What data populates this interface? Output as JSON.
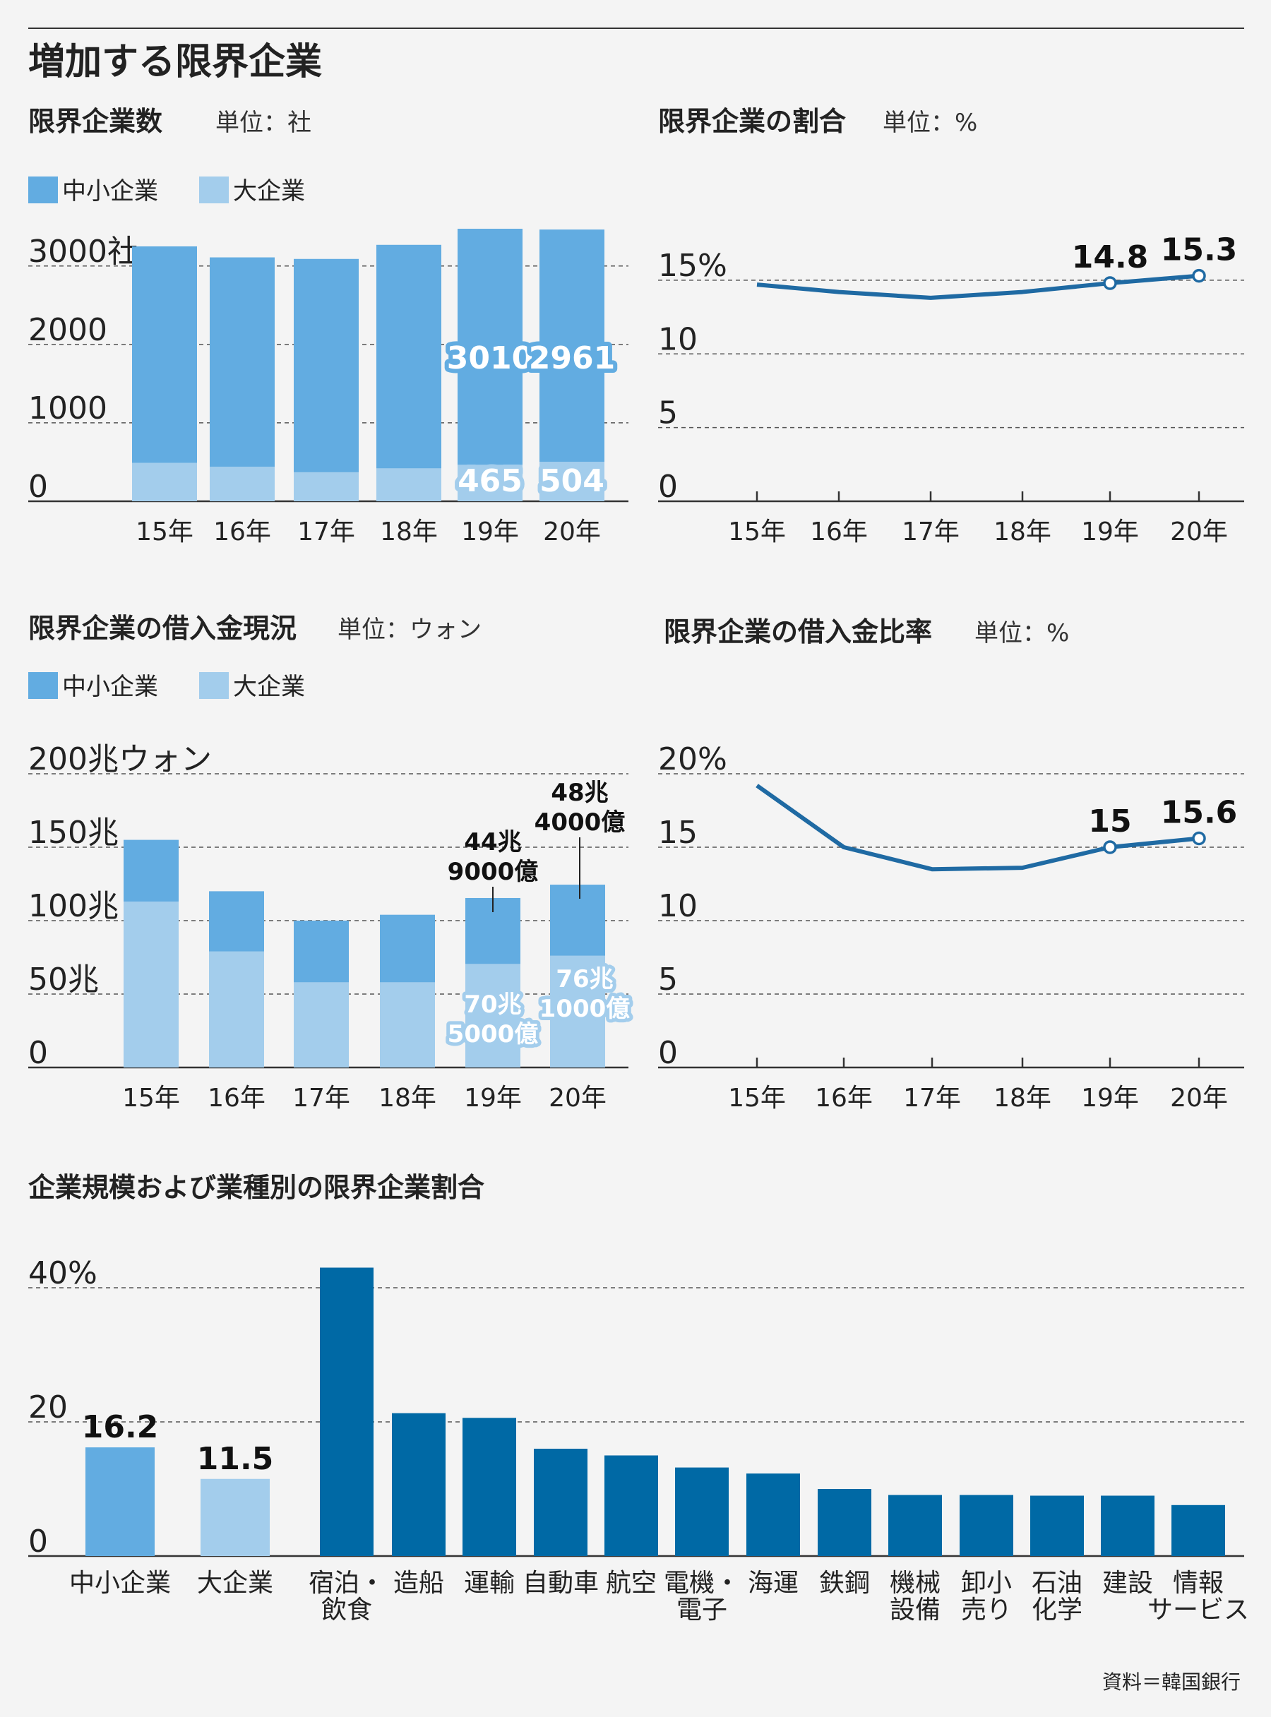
{
  "page": {
    "title": "増加する限界企業",
    "source": "資料＝韓国銀行"
  },
  "colors": {
    "sme": "#62ace1",
    "large": "#a3cdec",
    "dark": "#0069a5",
    "line": "#1f6aa3",
    "background": "#f4f4f4"
  },
  "chart_data": [
    {
      "id": "count",
      "type": "bar",
      "stacked": true,
      "title": "限界企業数",
      "unit": "単位：社",
      "categories": [
        "15年",
        "16年",
        "17年",
        "18年",
        "19年",
        "20年"
      ],
      "series": [
        {
          "name": "大企業",
          "values": [
            490,
            440,
            370,
            420,
            465,
            504
          ]
        },
        {
          "name": "中小企業",
          "values": [
            2760,
            2670,
            2720,
            2850,
            3010,
            2961
          ]
        }
      ],
      "yticks": [
        0,
        1000,
        2000,
        3000
      ],
      "ytick_labels": [
        "0",
        "1000",
        "2000",
        "3000社"
      ],
      "ylim": [
        0,
        3250
      ],
      "labels": {
        "sme_19": "3010",
        "sme_20": "2961",
        "large_19": "465",
        "large_20": "504"
      }
    },
    {
      "id": "ratio",
      "type": "line",
      "title": "限界企業の割合",
      "unit": "単位：%",
      "categories": [
        "15年",
        "16年",
        "17年",
        "18年",
        "19年",
        "20年"
      ],
      "values": [
        14.7,
        14.2,
        13.8,
        14.2,
        14.8,
        15.3
      ],
      "yticks": [
        0,
        5,
        10,
        15
      ],
      "ytick_labels": [
        "0",
        "5",
        "10",
        "15%"
      ],
      "ylim": [
        0,
        16
      ],
      "point_labels": {
        "4": "14.8",
        "5": "15.3"
      }
    },
    {
      "id": "debt",
      "type": "bar",
      "stacked": true,
      "title": "限界企業の借入金現況",
      "unit": "単位：ウォン",
      "categories": [
        "15年",
        "16年",
        "17年",
        "18年",
        "19年",
        "20年"
      ],
      "series": [
        {
          "name": "大企業",
          "values": [
            113,
            79,
            58,
            58,
            70.5,
            76.1
          ]
        },
        {
          "name": "中小企業",
          "values": [
            42,
            41,
            42,
            46,
            44.9,
            48.4
          ]
        }
      ],
      "yticks": [
        0,
        50,
        100,
        150,
        200
      ],
      "ytick_labels": [
        "0",
        "50兆",
        "100兆",
        "150兆",
        "200兆ウォン"
      ],
      "ylim": [
        0,
        200
      ],
      "callouts": {
        "sme_19": [
          "44兆",
          "9000億"
        ],
        "sme_20": [
          "48兆",
          "4000億"
        ],
        "large_19": [
          "70兆",
          "5000億"
        ],
        "large_20": [
          "76兆",
          "1000億"
        ]
      }
    },
    {
      "id": "debt_ratio",
      "type": "line",
      "title": "限界企業の借入金比率",
      "unit": "単位：%",
      "categories": [
        "15年",
        "16年",
        "17年",
        "18年",
        "19年",
        "20年"
      ],
      "values": [
        19.2,
        15.0,
        13.5,
        13.6,
        15.0,
        15.6
      ],
      "yticks": [
        0,
        5,
        10,
        15,
        20
      ],
      "ytick_labels": [
        "0",
        "5",
        "10",
        "15",
        "20%"
      ],
      "ylim": [
        0,
        20
      ],
      "point_labels": {
        "4": "15",
        "5": "15.6"
      }
    },
    {
      "id": "industry",
      "type": "bar",
      "title": "企業規模および業種別の限界企業割合",
      "categories": [
        "中小企業",
        "大企業",
        "宿泊・飲食",
        "造船",
        "運輸",
        "自動車",
        "航空",
        "電機・電子",
        "海運",
        "鉄鋼",
        "機械設備",
        "卸小売り",
        "石油化学",
        "建設",
        "情報サービス"
      ],
      "category_lines": [
        [
          "中小企業"
        ],
        [
          "大企業"
        ],
        [
          "宿泊・",
          "飲食"
        ],
        [
          "造船"
        ],
        [
          "運輸"
        ],
        [
          "自動車"
        ],
        [
          "航空"
        ],
        [
          "電機・",
          "電子"
        ],
        [
          "海運"
        ],
        [
          "鉄鋼"
        ],
        [
          "機械",
          "設備"
        ],
        [
          "卸小",
          "売り"
        ],
        [
          "石油",
          "化学"
        ],
        [
          "建設"
        ],
        [
          "情報",
          "サービス"
        ]
      ],
      "values": [
        16.2,
        11.5,
        43.0,
        21.3,
        20.6,
        16.0,
        15.0,
        13.2,
        12.3,
        10.0,
        9.1,
        9.1,
        9.0,
        9.0,
        7.6
      ],
      "yticks": [
        0,
        20,
        40
      ],
      "ytick_labels": [
        "0",
        "20",
        "40%"
      ],
      "ylim": [
        0,
        44
      ],
      "value_labels": {
        "0": "16.2",
        "1": "11.5"
      }
    }
  ],
  "legend": {
    "sme": "中小企業",
    "large": "大企業"
  }
}
